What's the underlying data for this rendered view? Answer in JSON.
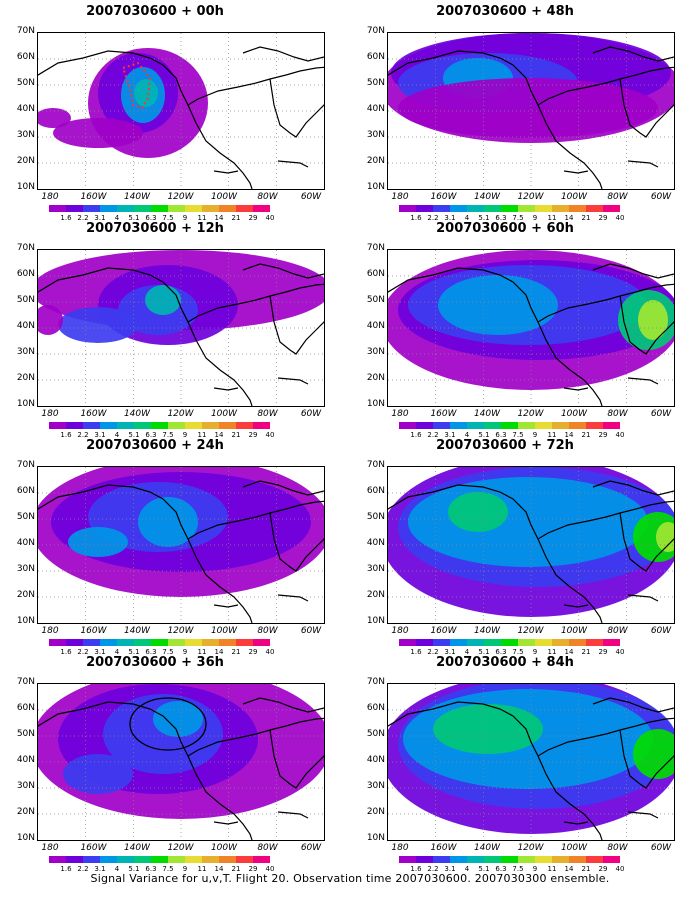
{
  "panels": [
    {
      "title": "2007030600 + 00h"
    },
    {
      "title": "2007030600 + 48h"
    },
    {
      "title": "2007030600 + 12h"
    },
    {
      "title": "2007030600 + 60h"
    },
    {
      "title": "2007030600 + 24h"
    },
    {
      "title": "2007030600 + 72h"
    },
    {
      "title": "2007030600 + 36h"
    },
    {
      "title": "2007030600 + 84h"
    }
  ],
  "lat_labels": [
    "70N",
    "60N",
    "50N",
    "40N",
    "30N",
    "20N",
    "10N"
  ],
  "lon_labels": [
    "180",
    "160W",
    "140W",
    "120W",
    "100W",
    "80W",
    "60W"
  ],
  "colorbar": {
    "labels": [
      "1.6",
      "2.2",
      "3.1",
      "4",
      "5.1",
      "6.3",
      "7.5",
      "9",
      "11",
      "14",
      "21",
      "29",
      "40"
    ],
    "colors": [
      "#a000c8",
      "#6e00dc",
      "#3c3cf0",
      "#0096e6",
      "#00b4b4",
      "#00c878",
      "#00dc00",
      "#a0e632",
      "#e6dc32",
      "#e6af2d",
      "#f08228",
      "#fa3c3c",
      "#f00082"
    ]
  },
  "caption": "Signal Variance for u,v,T. Flight 20. Observation time 2007030600. 2007030300 ensemble."
}
